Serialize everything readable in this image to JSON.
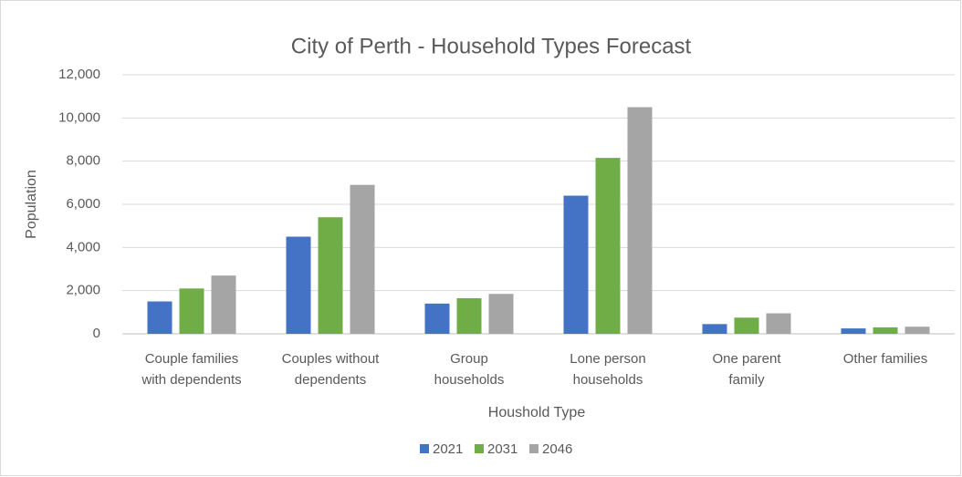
{
  "chart_data": {
    "type": "bar",
    "title": "City of Perth - Household Types Forecast",
    "x_label": "Houshold Type",
    "y_label": "Population",
    "categories": [
      [
        "Couple families",
        "with dependents"
      ],
      [
        "Couples without",
        "dependents"
      ],
      [
        "Group",
        "households"
      ],
      [
        "Lone person",
        "households"
      ],
      [
        "One parent",
        "family"
      ],
      [
        "Other families"
      ]
    ],
    "series": [
      {
        "name": "2021",
        "color": "#4472c4",
        "values": [
          1500,
          4500,
          1400,
          6400,
          450,
          250
        ]
      },
      {
        "name": "2031",
        "color": "#70ad47",
        "values": [
          2100,
          5400,
          1650,
          8150,
          750,
          300
        ]
      },
      {
        "name": "2046",
        "color": "#a5a5a5",
        "values": [
          2700,
          6900,
          1850,
          10500,
          950,
          330
        ]
      }
    ],
    "ylim": [
      0,
      12000
    ],
    "yticks": [
      0,
      {
        "value": 2000,
        "label": "2,000"
      },
      {
        "value": 4000,
        "label": "4,000"
      },
      {
        "value": 6000,
        "label": "6,000"
      },
      {
        "value": 8000,
        "label": "8,000"
      },
      {
        "value": 10000,
        "label": "10,000"
      },
      {
        "value": 12000,
        "label": "12,000"
      }
    ],
    "grid": true,
    "legend": "bottom"
  }
}
